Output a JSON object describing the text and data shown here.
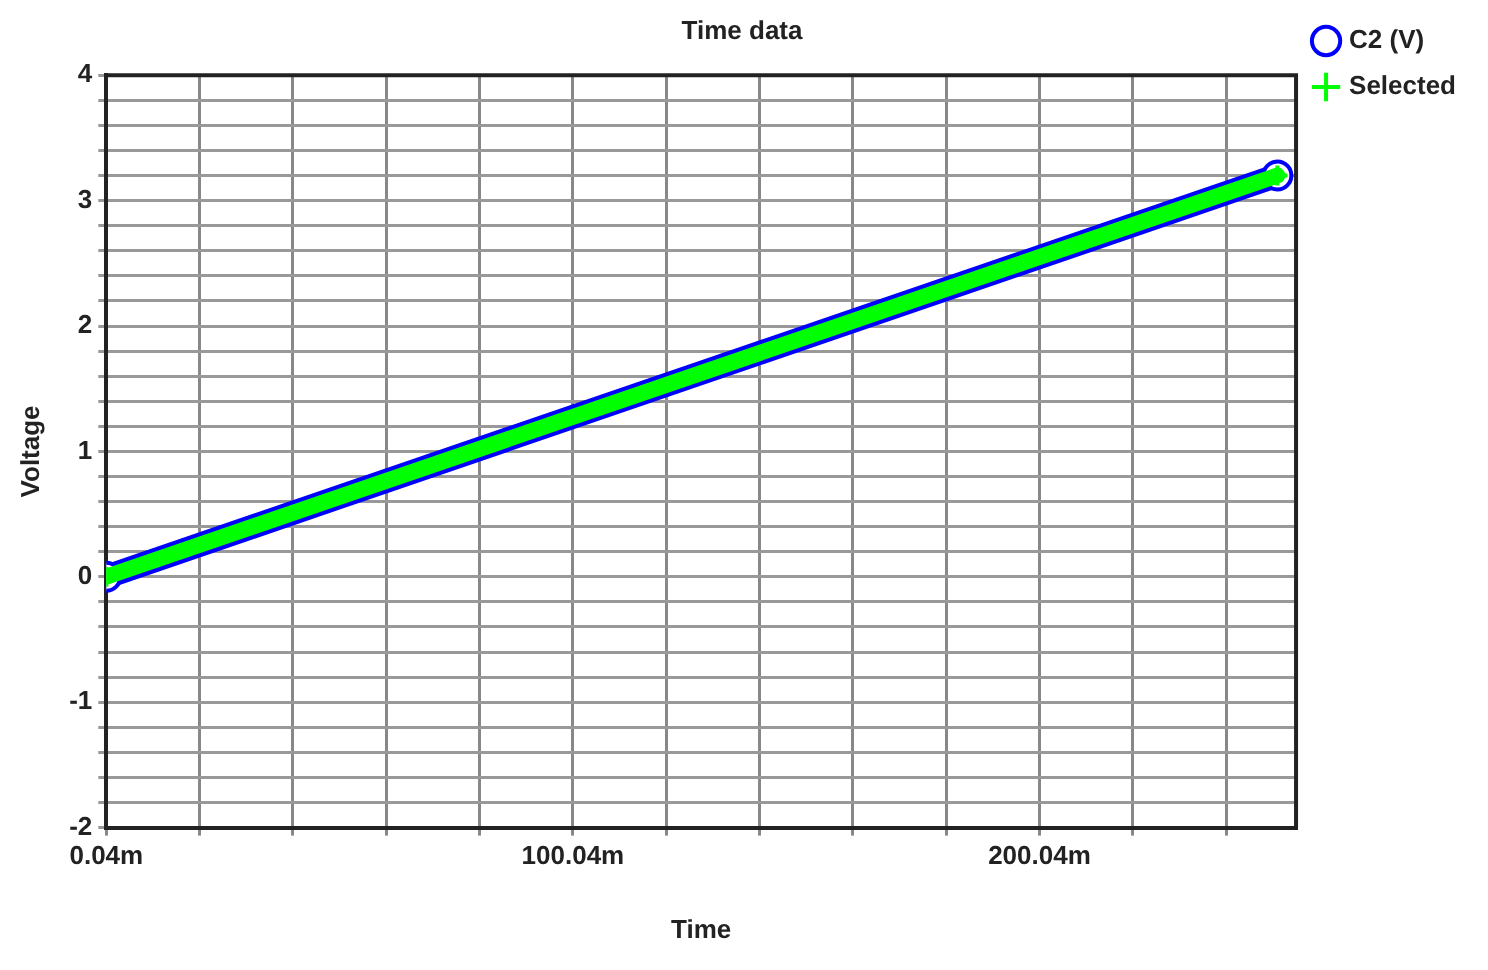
{
  "chart_data": {
    "type": "line",
    "title": "Time data",
    "xlabel": "Time",
    "ylabel": "Voltage",
    "x": [
      0.04,
      251.04
    ],
    "series": [
      {
        "name": "C2 (V)",
        "color": "#0000ff",
        "values": [
          0,
          3.2
        ],
        "marker": "circle"
      },
      {
        "name": "Selected",
        "color": "#00ff00",
        "values": [
          0,
          3.2
        ],
        "marker": "cross"
      }
    ],
    "xlim": [
      0.04,
      255.04
    ],
    "xticks": [
      {
        "value": 0.04,
        "label": "0.04m"
      },
      {
        "value": 20.04,
        "label": null
      },
      {
        "value": 40.04,
        "label": null
      },
      {
        "value": 60.04,
        "label": null
      },
      {
        "value": 80.04,
        "label": null
      },
      {
        "value": 100.04,
        "label": "100.04m"
      },
      {
        "value": 120.04,
        "label": null
      },
      {
        "value": 140.04,
        "label": null
      },
      {
        "value": 160.04,
        "label": null
      },
      {
        "value": 180.04,
        "label": null
      },
      {
        "value": 200.04,
        "label": "200.04m"
      },
      {
        "value": 220.04,
        "label": null
      },
      {
        "value": 240.04,
        "label": null
      }
    ],
    "ylim": [
      -2,
      4
    ],
    "yticks": [
      -2,
      {
        "value": -1.8,
        "label": null
      },
      {
        "value": -1.6,
        "label": null
      },
      {
        "value": -1.4,
        "label": null
      },
      {
        "value": -1.2,
        "label": null
      },
      -1,
      {
        "value": -0.8,
        "label": null
      },
      {
        "value": -0.6,
        "label": null
      },
      {
        "value": -0.4,
        "label": null
      },
      {
        "value": -0.2,
        "label": null
      },
      0,
      {
        "value": 0.2,
        "label": null
      },
      {
        "value": 0.4,
        "label": null
      },
      {
        "value": 0.6,
        "label": null
      },
      {
        "value": 0.8,
        "label": null
      },
      1,
      {
        "value": 1.2,
        "label": null
      },
      {
        "value": 1.4,
        "label": null
      },
      {
        "value": 1.6,
        "label": null
      },
      {
        "value": 1.8,
        "label": null
      },
      2,
      {
        "value": 2.2,
        "label": null
      },
      {
        "value": 2.4,
        "label": null
      },
      {
        "value": 2.6,
        "label": null
      },
      {
        "value": 2.8,
        "label": null
      },
      3,
      {
        "value": 3.2,
        "label": null
      },
      {
        "value": 3.4,
        "label": null
      },
      {
        "value": 3.6,
        "label": null
      },
      {
        "value": 3.8,
        "label": null
      },
      4
    ],
    "grid": true,
    "legend": "top right"
  }
}
